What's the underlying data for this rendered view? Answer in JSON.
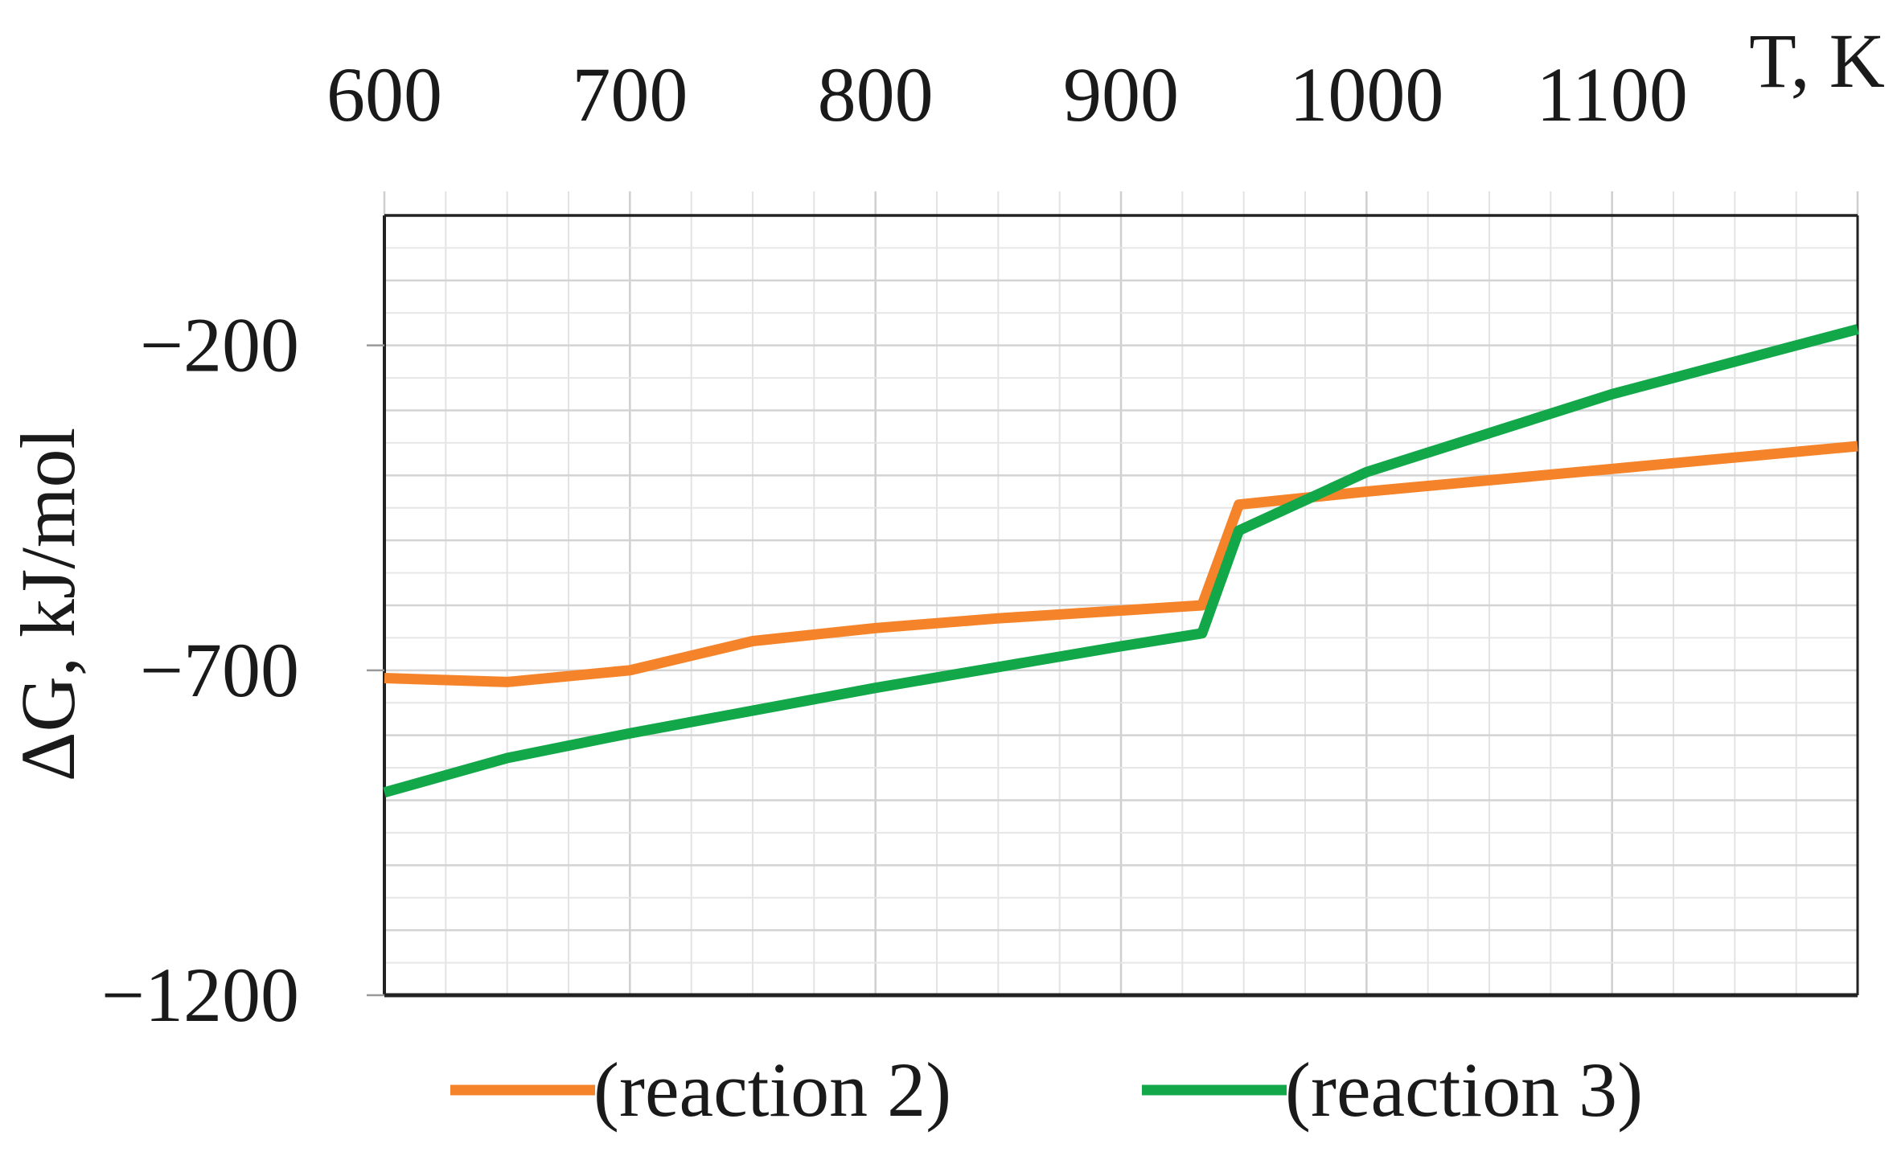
{
  "chart_data": {
    "type": "line",
    "title": "",
    "xlabel": "T, K",
    "ylabel": "ΔG, kJ/mol",
    "x_axis_position": "top",
    "xlim": [
      600,
      1200
    ],
    "ylim": [
      -1200,
      0
    ],
    "x_ticks": [
      600,
      700,
      800,
      900,
      1000,
      1100
    ],
    "x_tick_labels": [
      "600",
      "700",
      "800",
      "900",
      "1000",
      "1100"
    ],
    "y_ticks": [
      -200,
      -700,
      -1200
    ],
    "y_tick_labels": [
      "−200",
      "−700",
      "−1200"
    ],
    "grid": true,
    "legend_position": "bottom",
    "series": [
      {
        "name": "(reaction 2)",
        "color": "#f5832a",
        "x": [
          600,
          650,
          700,
          750,
          800,
          850,
          900,
          933,
          948,
          1000,
          1100,
          1200
        ],
        "y": [
          -712,
          -718,
          -700,
          -655,
          -635,
          -620,
          -608,
          -600,
          -445,
          -425,
          -390,
          -355
        ]
      },
      {
        "name": "(reaction 3)",
        "color": "#12a84a",
        "x": [
          600,
          650,
          700,
          750,
          800,
          850,
          900,
          933,
          948,
          1000,
          1100,
          1200
        ],
        "y": [
          -888,
          -835,
          -797,
          -762,
          -727,
          -695,
          -663,
          -643,
          -485,
          -395,
          -275,
          -175
        ]
      }
    ]
  }
}
